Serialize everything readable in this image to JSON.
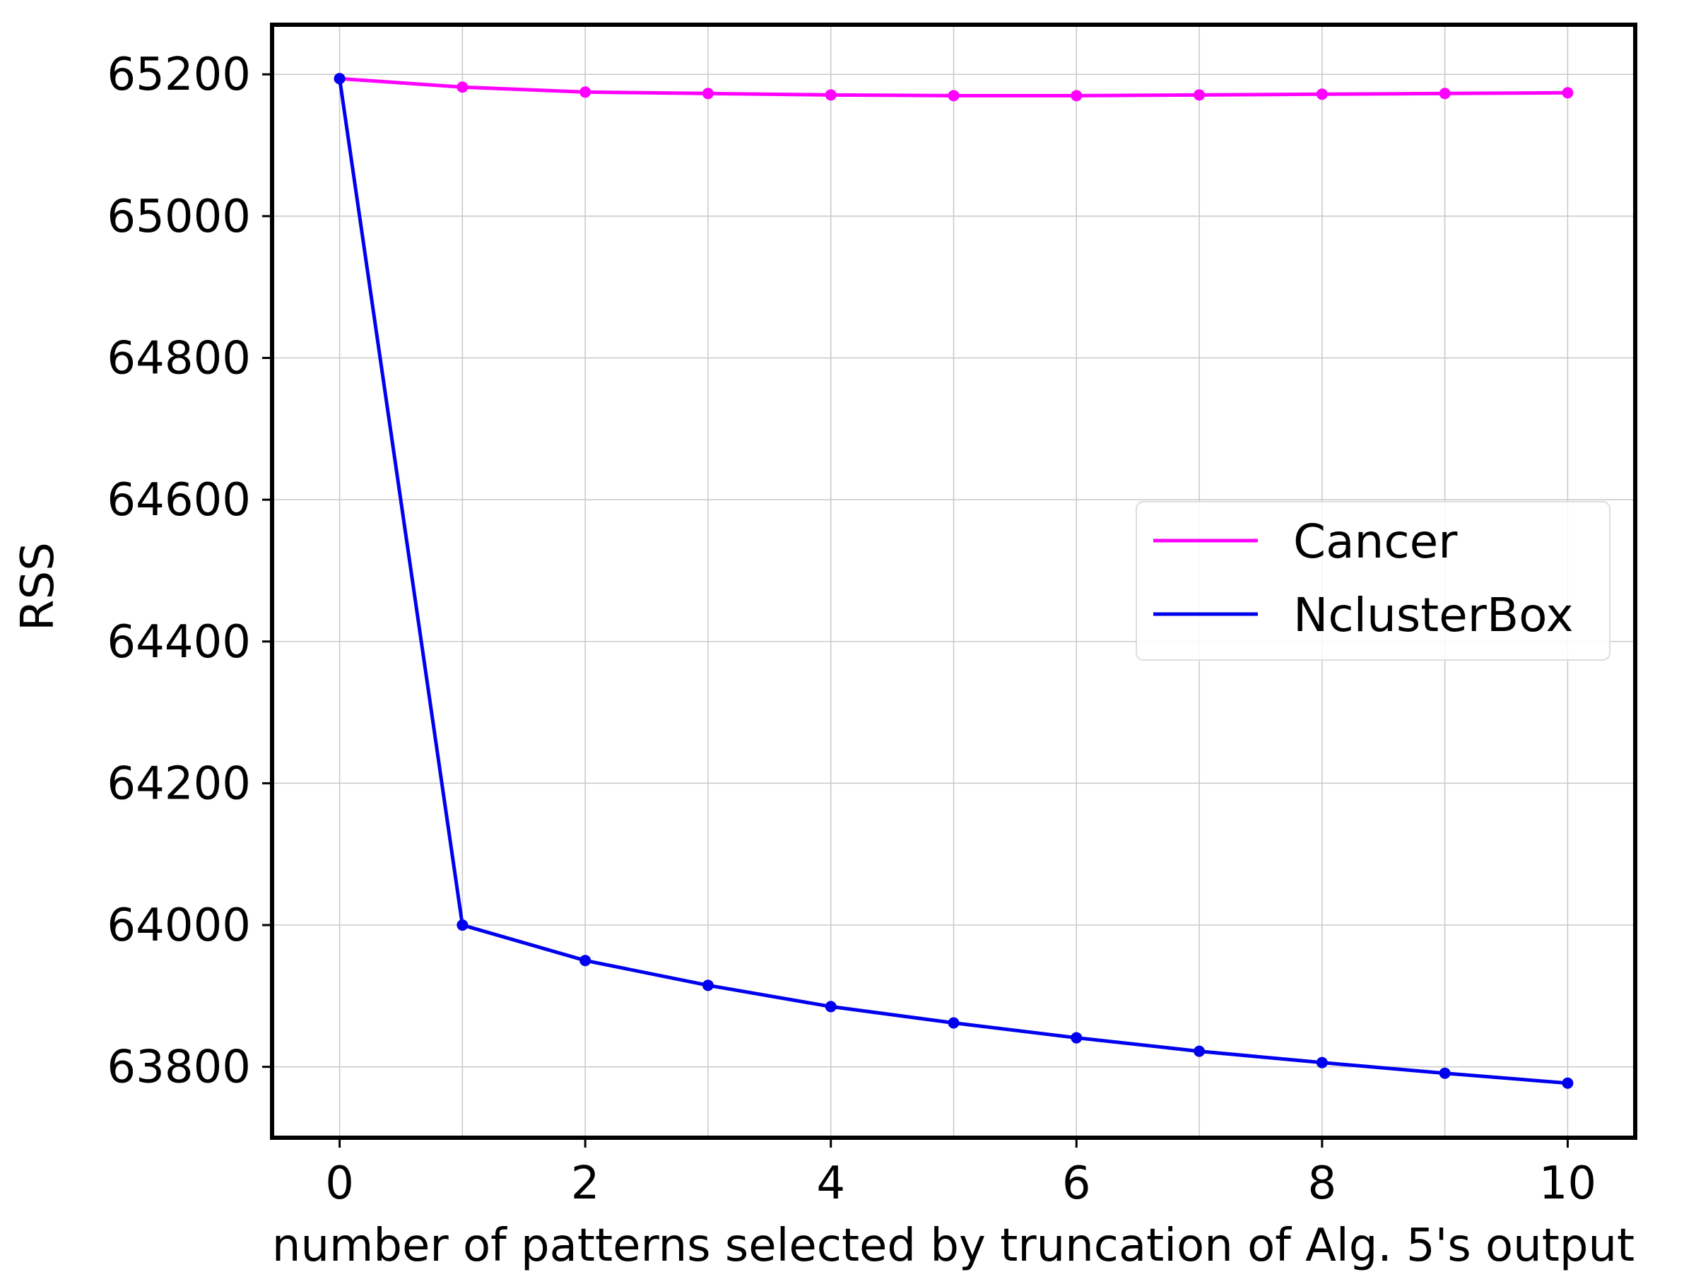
{
  "chart_data": {
    "type": "line",
    "xlabel": "number of patterns selected by truncation of Alg. 5's output",
    "ylabel": "RSS",
    "x": [
      0,
      1,
      2,
      3,
      4,
      5,
      6,
      7,
      8,
      9,
      10
    ],
    "xlim": [
      -0.55,
      10.55
    ],
    "ylim": [
      63700,
      65270
    ],
    "x_ticks": [
      0,
      2,
      4,
      6,
      8,
      10
    ],
    "y_ticks": [
      63800,
      64000,
      64200,
      64400,
      64600,
      64800,
      65000,
      65200
    ],
    "x_tick_labels": [
      "0",
      "2",
      "4",
      "6",
      "8",
      "10"
    ],
    "y_tick_labels": [
      "63800",
      "64000",
      "64200",
      "64400",
      "64600",
      "64800",
      "65000",
      "65200"
    ],
    "grid": true,
    "legend_position": "right",
    "series": [
      {
        "name": "Cancer",
        "color": "#ff00ff",
        "values": [
          65194,
          65182,
          65175,
          65173,
          65171,
          65170,
          65170,
          65171,
          65172,
          65173,
          65174
        ]
      },
      {
        "name": "NclusterBox",
        "color": "#0000ee",
        "values": [
          65194,
          64000,
          63950,
          63915,
          63885,
          63862,
          63841,
          63822,
          63806,
          63791,
          63777
        ]
      }
    ]
  }
}
